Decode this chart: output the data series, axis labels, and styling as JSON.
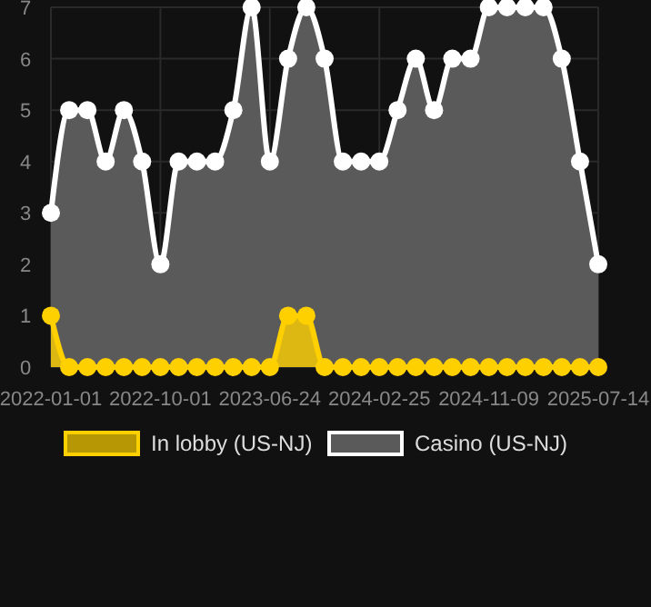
{
  "chart_data": {
    "type": "area",
    "categories": [
      "2022-01-01",
      null,
      null,
      null,
      null,
      null,
      "2022-10-01",
      null,
      null,
      null,
      null,
      null,
      "2023-06-24",
      null,
      null,
      null,
      null,
      null,
      "2024-02-25",
      null,
      null,
      null,
      null,
      null,
      "2024-11-09",
      null,
      null,
      null,
      null,
      null,
      "2025-07-14"
    ],
    "series": [
      {
        "name": "Casino (US-NJ)",
        "color": "#ffffff",
        "values": [
          3,
          5,
          5,
          4,
          5,
          4,
          2,
          4,
          4,
          4,
          5,
          7,
          4,
          6,
          7,
          6,
          4,
          4,
          4,
          5,
          6,
          5,
          6,
          6,
          7,
          7,
          7,
          7,
          6,
          4,
          2
        ]
      },
      {
        "name": "In lobby (US-NJ)",
        "color": "#ffd000",
        "values": [
          1,
          0,
          0,
          0,
          0,
          0,
          0,
          0,
          0,
          0,
          0,
          0,
          0,
          1,
          1,
          0,
          0,
          0,
          0,
          0,
          0,
          0,
          0,
          0,
          0,
          0,
          0,
          0,
          0,
          0,
          0
        ]
      }
    ],
    "ylim": [
      0,
      7
    ],
    "yticks": [
      0,
      1,
      2,
      3,
      4,
      5,
      6,
      7
    ],
    "grid": true,
    "legend": "bottom",
    "marker": "circle"
  }
}
